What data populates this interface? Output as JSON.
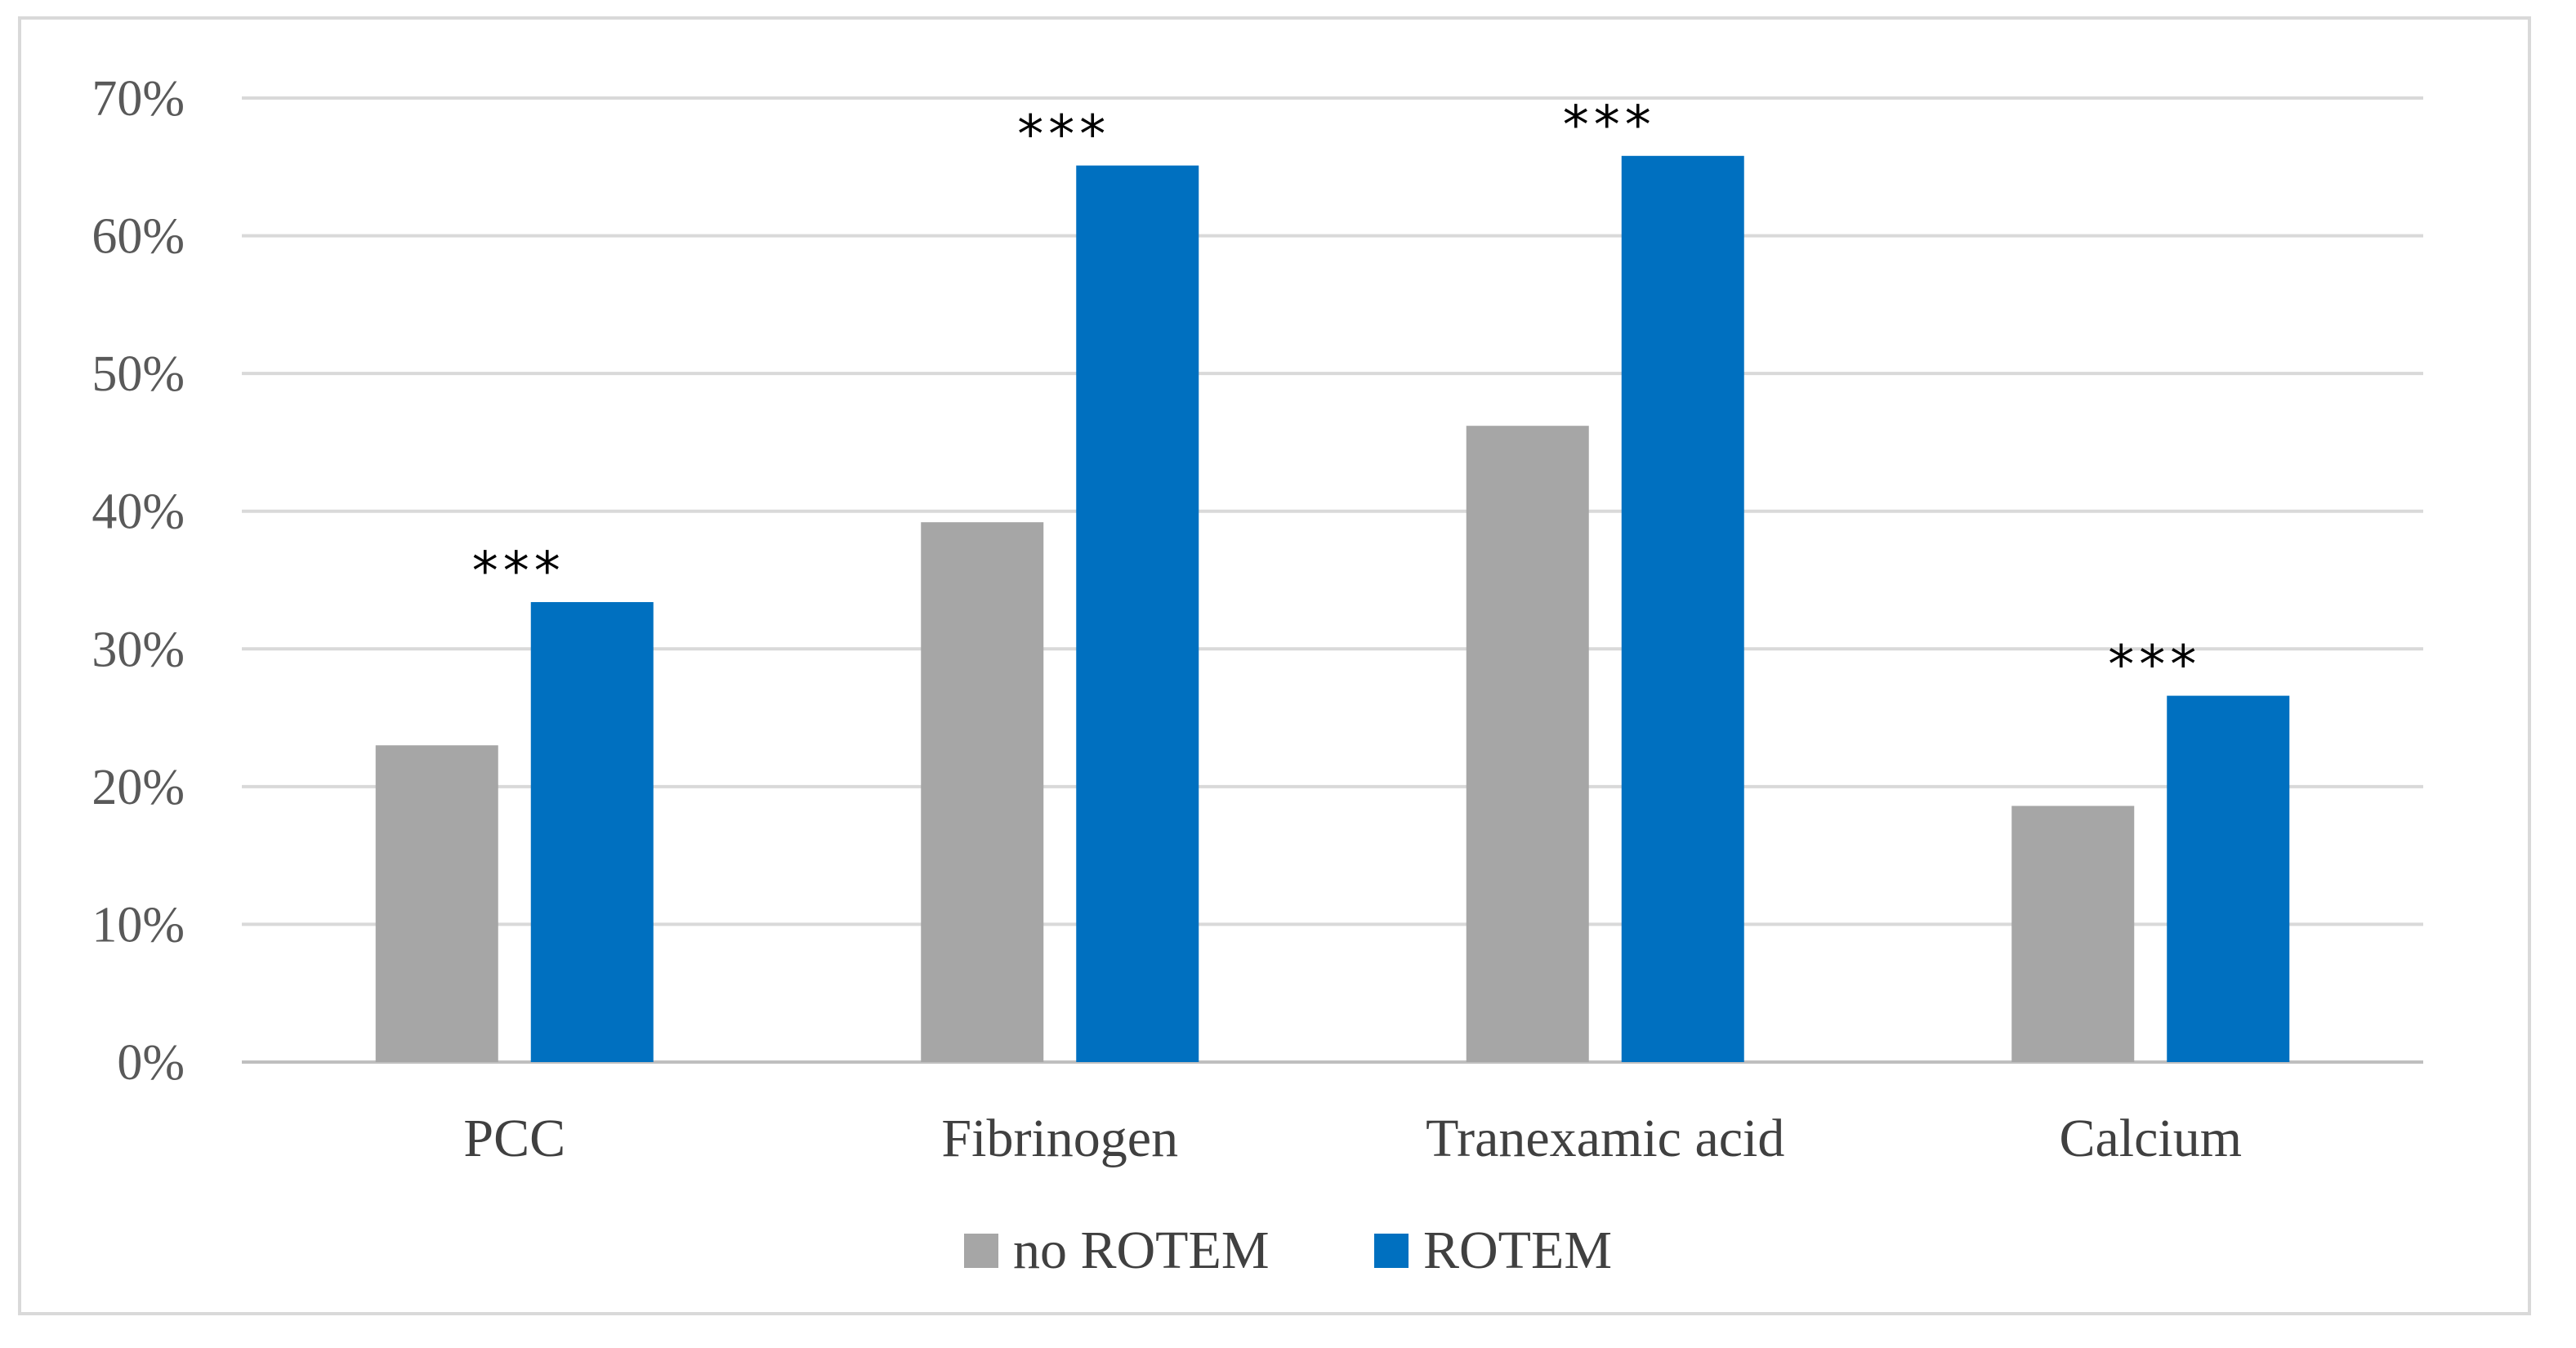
{
  "chart_data": {
    "type": "bar",
    "title": "",
    "xlabel": "",
    "ylabel": "",
    "ylim": [
      0,
      70
    ],
    "y_ticks": [
      "0%",
      "10%",
      "20%",
      "30%",
      "40%",
      "50%",
      "60%",
      "70%"
    ],
    "grid": "horizontal",
    "legend_position": "bottom",
    "categories": [
      "PCC",
      "Fibrinogen",
      "Tranexamic acid",
      "Calcium"
    ],
    "series": [
      {
        "name": "no ROTEM",
        "color": "#a6a6a6",
        "values": [
          23,
          39.2,
          46.2,
          18.6
        ]
      },
      {
        "name": "ROTEM",
        "color": "#0070c0",
        "values": [
          33.4,
          65.1,
          65.8,
          26.6
        ]
      }
    ],
    "annotations": [
      "***",
      "***",
      "***",
      "***"
    ]
  }
}
